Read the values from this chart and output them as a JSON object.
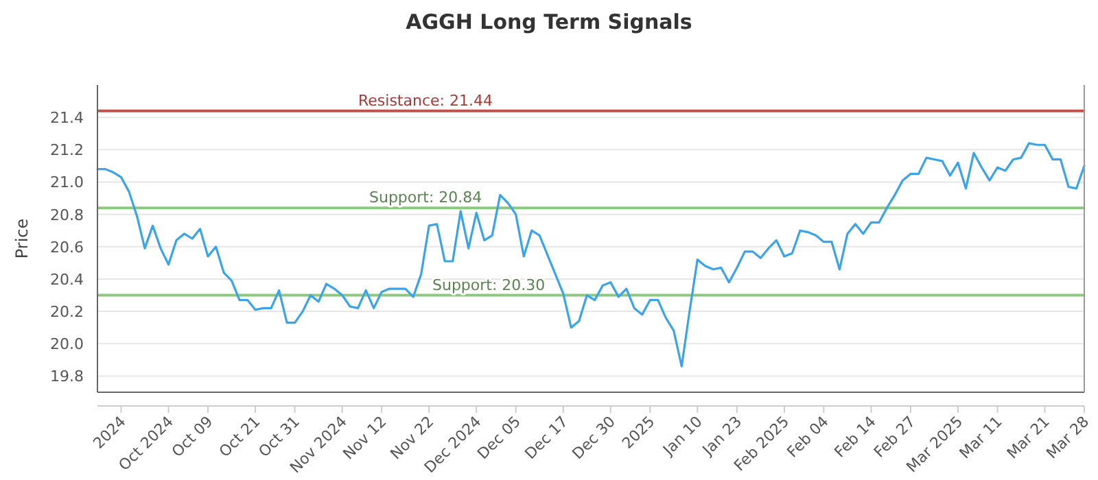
{
  "chart_data": {
    "type": "line",
    "title": "AGGH Long Term Signals",
    "ylabel": "Price",
    "categories": [
      null,
      null,
      null,
      "2024",
      null,
      null,
      null,
      null,
      null,
      "Oct 2024",
      null,
      null,
      null,
      null,
      "Oct 09",
      null,
      null,
      null,
      null,
      null,
      "Oct 21",
      null,
      null,
      null,
      null,
      "Oct 31",
      null,
      null,
      null,
      null,
      null,
      "Nov 2024",
      null,
      null,
      null,
      null,
      "Nov 12",
      null,
      null,
      null,
      null,
      null,
      "Nov 22",
      null,
      null,
      null,
      null,
      null,
      "Dec 2024",
      null,
      null,
      null,
      null,
      "Dec 05",
      null,
      null,
      null,
      null,
      null,
      "Dec 17",
      null,
      null,
      null,
      null,
      null,
      "Dec 30",
      null,
      null,
      null,
      null,
      "2025",
      null,
      null,
      null,
      null,
      null,
      "Jan 10",
      null,
      null,
      null,
      null,
      "Jan 23",
      null,
      null,
      null,
      null,
      null,
      "Feb 2025",
      null,
      null,
      null,
      null,
      "Feb 04",
      null,
      null,
      null,
      null,
      null,
      "Feb 14",
      null,
      null,
      null,
      null,
      "Feb 27",
      null,
      null,
      null,
      null,
      null,
      "Mar 2025",
      null,
      null,
      null,
      null,
      "Mar 11",
      null,
      null,
      null,
      null,
      null,
      "Mar 21",
      null,
      null,
      null,
      null,
      "Mar 28"
    ],
    "series": [
      {
        "color": "#3ba3e8",
        "values": [
          21.08,
          21.08,
          21.06,
          21.03,
          20.94,
          20.79,
          20.59,
          20.73,
          20.59,
          20.49,
          20.64,
          20.68,
          20.65,
          20.71,
          20.54,
          20.6,
          20.44,
          20.39,
          20.27,
          20.27,
          20.21,
          20.22,
          20.22,
          20.33,
          20.13,
          20.13,
          20.2,
          20.3,
          20.26,
          20.37,
          20.34,
          20.3,
          20.23,
          20.22,
          20.33,
          20.22,
          20.32,
          20.34,
          20.34,
          20.34,
          20.29,
          20.43,
          20.73,
          20.74,
          20.51,
          20.51,
          20.82,
          20.59,
          20.81,
          20.64,
          20.67,
          20.92,
          20.87,
          20.8,
          20.54,
          20.7,
          20.67,
          20.55,
          20.43,
          20.31,
          20.1,
          20.14,
          20.3,
          20.27,
          20.36,
          20.38,
          20.29,
          20.34,
          20.22,
          20.18,
          20.27,
          20.27,
          20.16,
          20.08,
          19.86,
          20.2,
          20.52,
          20.48,
          20.46,
          20.47,
          20.38,
          20.47,
          20.57,
          20.57,
          20.53,
          20.59,
          20.64,
          20.54,
          20.56,
          20.7,
          20.69,
          20.67,
          20.63,
          20.63,
          20.46,
          20.68,
          20.74,
          20.68,
          20.75,
          20.75,
          20.84,
          20.92,
          21.01,
          21.05,
          21.05,
          21.15,
          21.14,
          21.13,
          21.04,
          21.12,
          20.96,
          21.18,
          21.09,
          21.01,
          21.09,
          21.07,
          21.14,
          21.15,
          21.24,
          21.23,
          21.23,
          21.14,
          21.14,
          20.97,
          20.96,
          21.1
        ]
      }
    ],
    "ylim": [
      19.7,
      21.6
    ],
    "yticks": [
      19.8,
      {
        "value": 20,
        "label": "20.0"
      },
      20.2,
      20.4,
      20.6,
      20.8,
      {
        "value": 21,
        "label": "21.0"
      },
      21.2,
      21.4
    ],
    "grid": "y",
    "ref_lines": [
      {
        "axis": "y",
        "value": 21.44,
        "label": "Resistance: 21.44",
        "color": "#c0504d"
      },
      {
        "axis": "y",
        "value": 20.84,
        "label": "Support: 20.84",
        "color": "#8cc97e"
      },
      {
        "axis": "y",
        "value": 20.3,
        "label": "Support: 20.30",
        "color": "#8cc97e"
      }
    ]
  }
}
